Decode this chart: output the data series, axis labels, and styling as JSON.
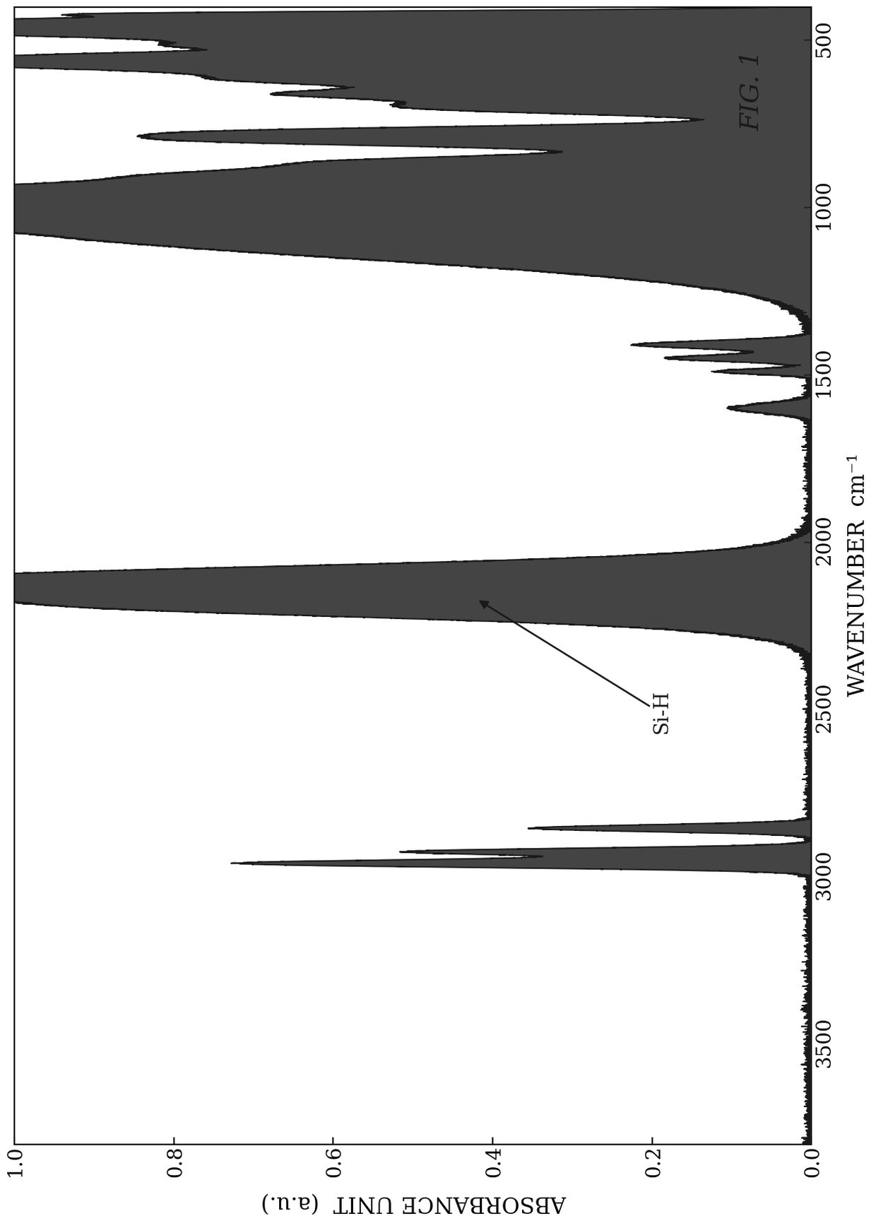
{
  "title": "FIG. 1",
  "xlabel": "WAVENUMBER  cm⁻¹",
  "ylabel": "ABSORBANCE UNIT  (a.u.)",
  "xmin": 400,
  "xmax": 3800,
  "ymin": 0.0,
  "ymax": 1.0,
  "xticks": [
    500,
    1000,
    1500,
    2000,
    2500,
    3000,
    3500
  ],
  "yticks": [
    0.0,
    0.2,
    0.4,
    0.6,
    0.8,
    1.0
  ],
  "annotation_text": "Si-H",
  "line_color": "#1a1a1a",
  "fill_color": "#2a2a2a",
  "background_color": "#ffffff",
  "fig_label_color": "#1a1a1a",
  "figsize": [
    12.4,
    17.28
  ],
  "dpi": 100
}
